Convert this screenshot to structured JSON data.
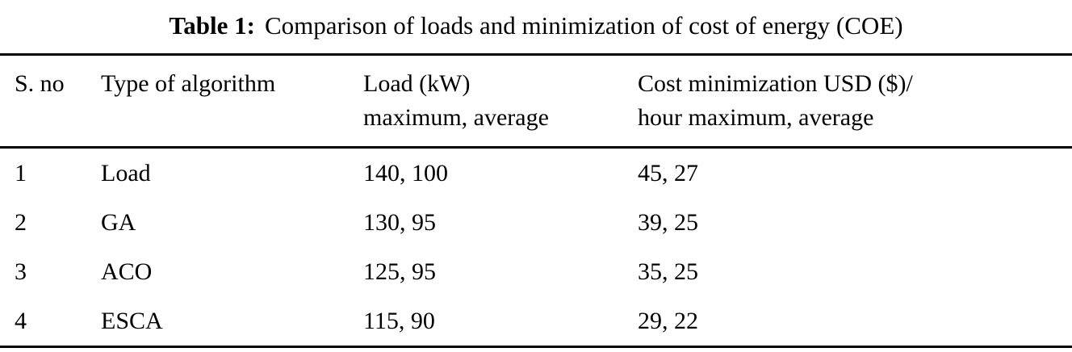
{
  "caption": {
    "label": "Table 1:",
    "text": "Comparison of loads and minimization of cost of energy (COE)"
  },
  "chart_data": {
    "type": "table",
    "title": "Table 1: Comparison of loads and minimization of cost of energy (COE)",
    "columns": [
      "S. no",
      "Type of algorithm",
      "Load (kW) maximum, average",
      "Cost minimization USD ($)/ hour maximum, average"
    ],
    "rows": [
      [
        "1",
        "Load",
        "140, 100",
        "45, 27"
      ],
      [
        "2",
        "GA",
        "130, 95",
        "39, 25"
      ],
      [
        "3",
        "ACO",
        "125, 95",
        "35, 25"
      ],
      [
        "4",
        "ESCA",
        "115, 90",
        "29, 22"
      ]
    ]
  },
  "table": {
    "headers": [
      [
        "S. no"
      ],
      [
        "Type of algorithm"
      ],
      [
        "Load (kW)",
        "maximum, average"
      ],
      [
        "Cost minimization USD ($)/",
        "hour maximum, average"
      ]
    ],
    "rows": [
      [
        "1",
        "Load",
        "140, 100",
        "45, 27"
      ],
      [
        "2",
        "GA",
        "130, 95",
        "39, 25"
      ],
      [
        "3",
        "ACO",
        "125, 95",
        "35, 25"
      ],
      [
        "4",
        "ESCA",
        "115, 90",
        "29, 22"
      ]
    ]
  }
}
